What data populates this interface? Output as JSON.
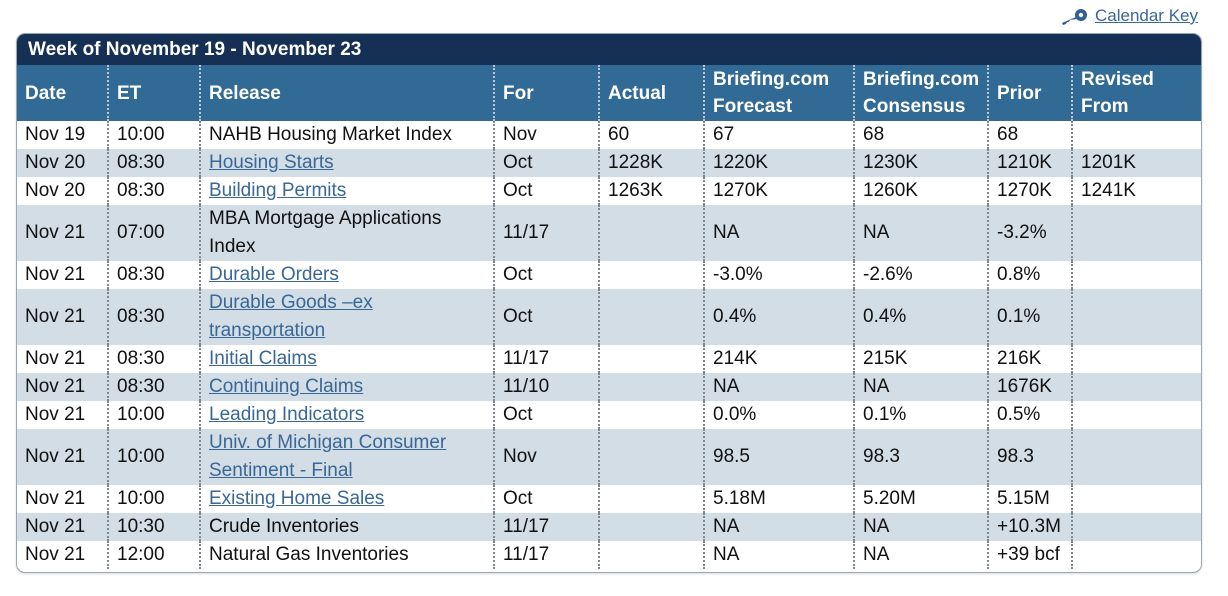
{
  "calendar_key": {
    "label": "Calendar Key",
    "icon": "key-icon"
  },
  "week_title": "Week of November 19 - November 23",
  "columns": {
    "date": "Date",
    "et": "ET",
    "release": "Release",
    "for": "For",
    "actual": "Actual",
    "forecast": "Briefing.com Forecast",
    "consensus": "Briefing.com Consensus",
    "prior": "Prior",
    "revised": "Revised From"
  },
  "colors": {
    "title_bar": "#162f55",
    "header_bar": "#316a94",
    "alt_row": "#d2dde5",
    "link": "#3a6796"
  },
  "rows": [
    {
      "date": "Nov 19",
      "et": "10:00",
      "release": "NAHB Housing Market Index",
      "link": false,
      "for": "Nov",
      "actual": "60",
      "forecast": "67",
      "consensus": "68",
      "prior": "68",
      "revised": ""
    },
    {
      "date": "Nov 20",
      "et": "08:30",
      "release": "Housing Starts",
      "link": true,
      "for": "Oct",
      "actual": "1228K",
      "forecast": "1220K",
      "consensus": "1230K",
      "prior": "1210K",
      "revised": "1201K"
    },
    {
      "date": "Nov 20",
      "et": "08:30",
      "release": "Building Permits",
      "link": true,
      "for": "Oct",
      "actual": "1263K",
      "forecast": "1270K",
      "consensus": "1260K",
      "prior": "1270K",
      "revised": "1241K"
    },
    {
      "date": "Nov 21",
      "et": "07:00",
      "release": "MBA Mortgage Applications Index",
      "link": false,
      "for": "11/17",
      "actual": "",
      "forecast": "NA",
      "consensus": "NA",
      "prior": "-3.2%",
      "revised": ""
    },
    {
      "date": "Nov 21",
      "et": "08:30",
      "release": "Durable Orders",
      "link": true,
      "for": "Oct",
      "actual": "",
      "forecast": "-3.0%",
      "consensus": "-2.6%",
      "prior": "0.8%",
      "revised": ""
    },
    {
      "date": "Nov 21",
      "et": "08:30",
      "release": "Durable Goods –ex transportation",
      "link": true,
      "for": "Oct",
      "actual": "",
      "forecast": "0.4%",
      "consensus": "0.4%",
      "prior": "0.1%",
      "revised": ""
    },
    {
      "date": "Nov 21",
      "et": "08:30",
      "release": "Initial Claims",
      "link": true,
      "for": "11/17",
      "actual": "",
      "forecast": "214K",
      "consensus": "215K",
      "prior": "216K",
      "revised": ""
    },
    {
      "date": "Nov 21",
      "et": "08:30",
      "release": "Continuing Claims",
      "link": true,
      "for": "11/10",
      "actual": "",
      "forecast": "NA",
      "consensus": "NA",
      "prior": "1676K",
      "revised": ""
    },
    {
      "date": "Nov 21",
      "et": "10:00",
      "release": "Leading Indicators",
      "link": true,
      "for": "Oct",
      "actual": "",
      "forecast": "0.0%",
      "consensus": "0.1%",
      "prior": "0.5%",
      "revised": ""
    },
    {
      "date": "Nov 21",
      "et": "10:00",
      "release": "Univ. of Michigan Consumer Sentiment - Final",
      "link": true,
      "for": "Nov",
      "actual": "",
      "forecast": "98.5",
      "consensus": "98.3",
      "prior": "98.3",
      "revised": ""
    },
    {
      "date": "Nov 21",
      "et": "10:00",
      "release": "Existing Home Sales",
      "link": true,
      "for": "Oct",
      "actual": "",
      "forecast": "5.18M",
      "consensus": "5.20M",
      "prior": "5.15M",
      "revised": ""
    },
    {
      "date": "Nov 21",
      "et": "10:30",
      "release": "Crude Inventories",
      "link": false,
      "for": "11/17",
      "actual": "",
      "forecast": "NA",
      "consensus": "NA",
      "prior": "+10.3M",
      "revised": ""
    },
    {
      "date": "Nov 21",
      "et": "12:00",
      "release": "Natural Gas Inventories",
      "link": false,
      "for": "11/17",
      "actual": "",
      "forecast": "NA",
      "consensus": "NA",
      "prior": "+39 bcf",
      "revised": ""
    }
  ]
}
